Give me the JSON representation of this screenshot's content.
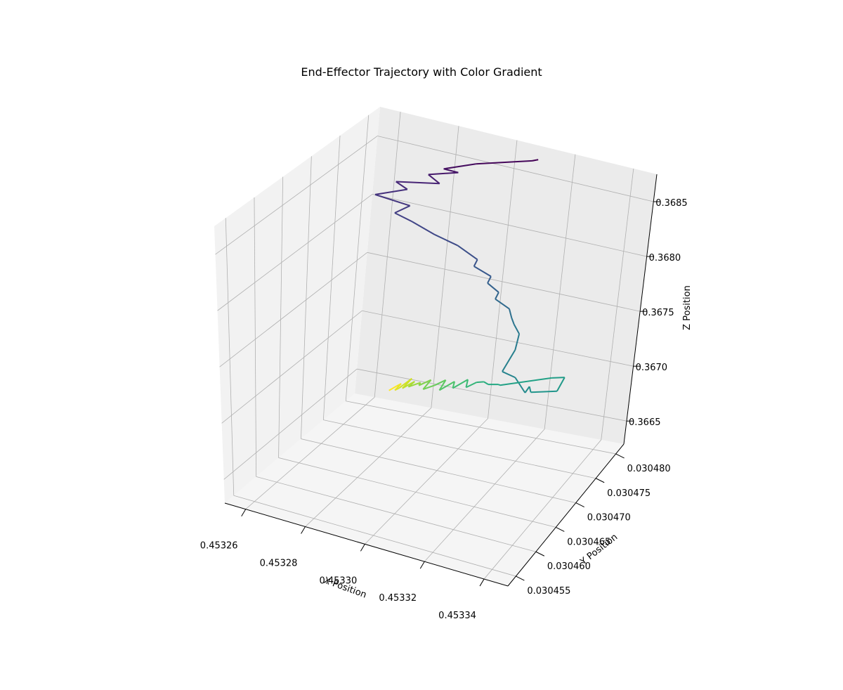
{
  "chart_data": {
    "type": "line3d",
    "title": "End-Effector Trajectory with Color Gradient",
    "xlabel": "X Position",
    "ylabel": "Y Position",
    "zlabel": "Z Position",
    "colormap": "viridis",
    "grid": true,
    "x_ticks": [
      "0.45326",
      "0.45328",
      "0.45330",
      "0.45332",
      "0.45334"
    ],
    "y_ticks": [
      "0.030455",
      "0.030460",
      "0.030465",
      "0.030470",
      "0.030475",
      "0.030480"
    ],
    "z_ticks": [
      "0.3665",
      "0.3670",
      "0.3675",
      "0.3680",
      "0.3685"
    ],
    "colors": {
      "start": "#440154",
      "q1": "#3b528b",
      "mid": "#21918c",
      "q3": "#5ec962",
      "end": "#fde725",
      "pane_back": "#ebebeb",
      "pane_side": "#f2f2f2",
      "pane_floor": "#f5f5f5",
      "grid": "#b0b0b0"
    },
    "trajectory": {
      "x": [
        0.453313,
        0.453311,
        0.453294,
        0.453285,
        0.45329,
        0.45328,
        0.453284,
        0.453271,
        0.453275,
        0.453266,
        0.453278,
        0.453273,
        0.453279,
        0.453287,
        0.453295,
        0.453302,
        0.453301,
        0.453307,
        0.453306,
        0.45331,
        0.453309,
        0.453314,
        0.453315,
        0.453316,
        0.453318,
        0.45332,
        0.453322,
        0.453325,
        0.453333,
        0.45333,
        0.453332,
        0.453338,
        0.453336,
        0.453333,
        0.45332,
        0.453318,
        0.453316,
        0.453313,
        0.453312,
        0.45331,
        0.453309,
        0.453307,
        0.453306,
        0.453304,
        0.453303,
        0.453301,
        0.4533,
        0.453298,
        0.453297,
        0.453296,
        0.453295,
        0.453294,
        0.453294,
        0.453293,
        0.453293,
        0.453292,
        0.453292,
        0.453291,
        0.453291,
        0.45329
      ],
      "y": [
        0.030479,
        0.030479,
        0.030478,
        0.030477,
        0.030477,
        0.030477,
        0.030477,
        0.030476,
        0.030476,
        0.030475,
        0.030475,
        0.030475,
        0.030475,
        0.030475,
        0.030475,
        0.030475,
        0.030475,
        0.030475,
        0.030475,
        0.030475,
        0.030475,
        0.030475,
        0.030475,
        0.030475,
        0.030475,
        0.030473,
        0.030469,
        0.03047,
        0.030467,
        0.03047,
        0.030469,
        0.030471,
        0.030474,
        0.030473,
        0.03047,
        0.030471,
        0.03047,
        0.030471,
        0.03047,
        0.030469,
        0.03047,
        0.030468,
        0.030469,
        0.030467,
        0.030469,
        0.030468,
        0.030466,
        0.030469,
        0.030467,
        0.030468,
        0.030466,
        0.030468,
        0.030467,
        0.030466,
        0.030468,
        0.030466,
        0.030465,
        0.030467,
        0.030466,
        0.030465
      ],
      "z": [
        0.3687,
        0.36868,
        0.36859,
        0.36853,
        0.36852,
        0.36846,
        0.3684,
        0.36839,
        0.36834,
        0.36829,
        0.36824,
        0.36816,
        0.36811,
        0.36803,
        0.36797,
        0.36788,
        0.36782,
        0.36776,
        0.3677,
        0.36764,
        0.36758,
        0.36752,
        0.36745,
        0.3674,
        0.36733,
        0.36726,
        0.3672,
        0.36714,
        0.36713,
        0.36709,
        0.36708,
        0.36706,
        0.36708,
        0.36709,
        0.36706,
        0.36703,
        0.36705,
        0.36703,
        0.36705,
        0.36703,
        0.36706,
        0.36704,
        0.36706,
        0.36704,
        0.36706,
        0.36704,
        0.36706,
        0.36704,
        0.36705,
        0.36704,
        0.36706,
        0.36704,
        0.36705,
        0.36704,
        0.36706,
        0.36704,
        0.36705,
        0.36704,
        0.36705,
        0.36704
      ]
    }
  }
}
